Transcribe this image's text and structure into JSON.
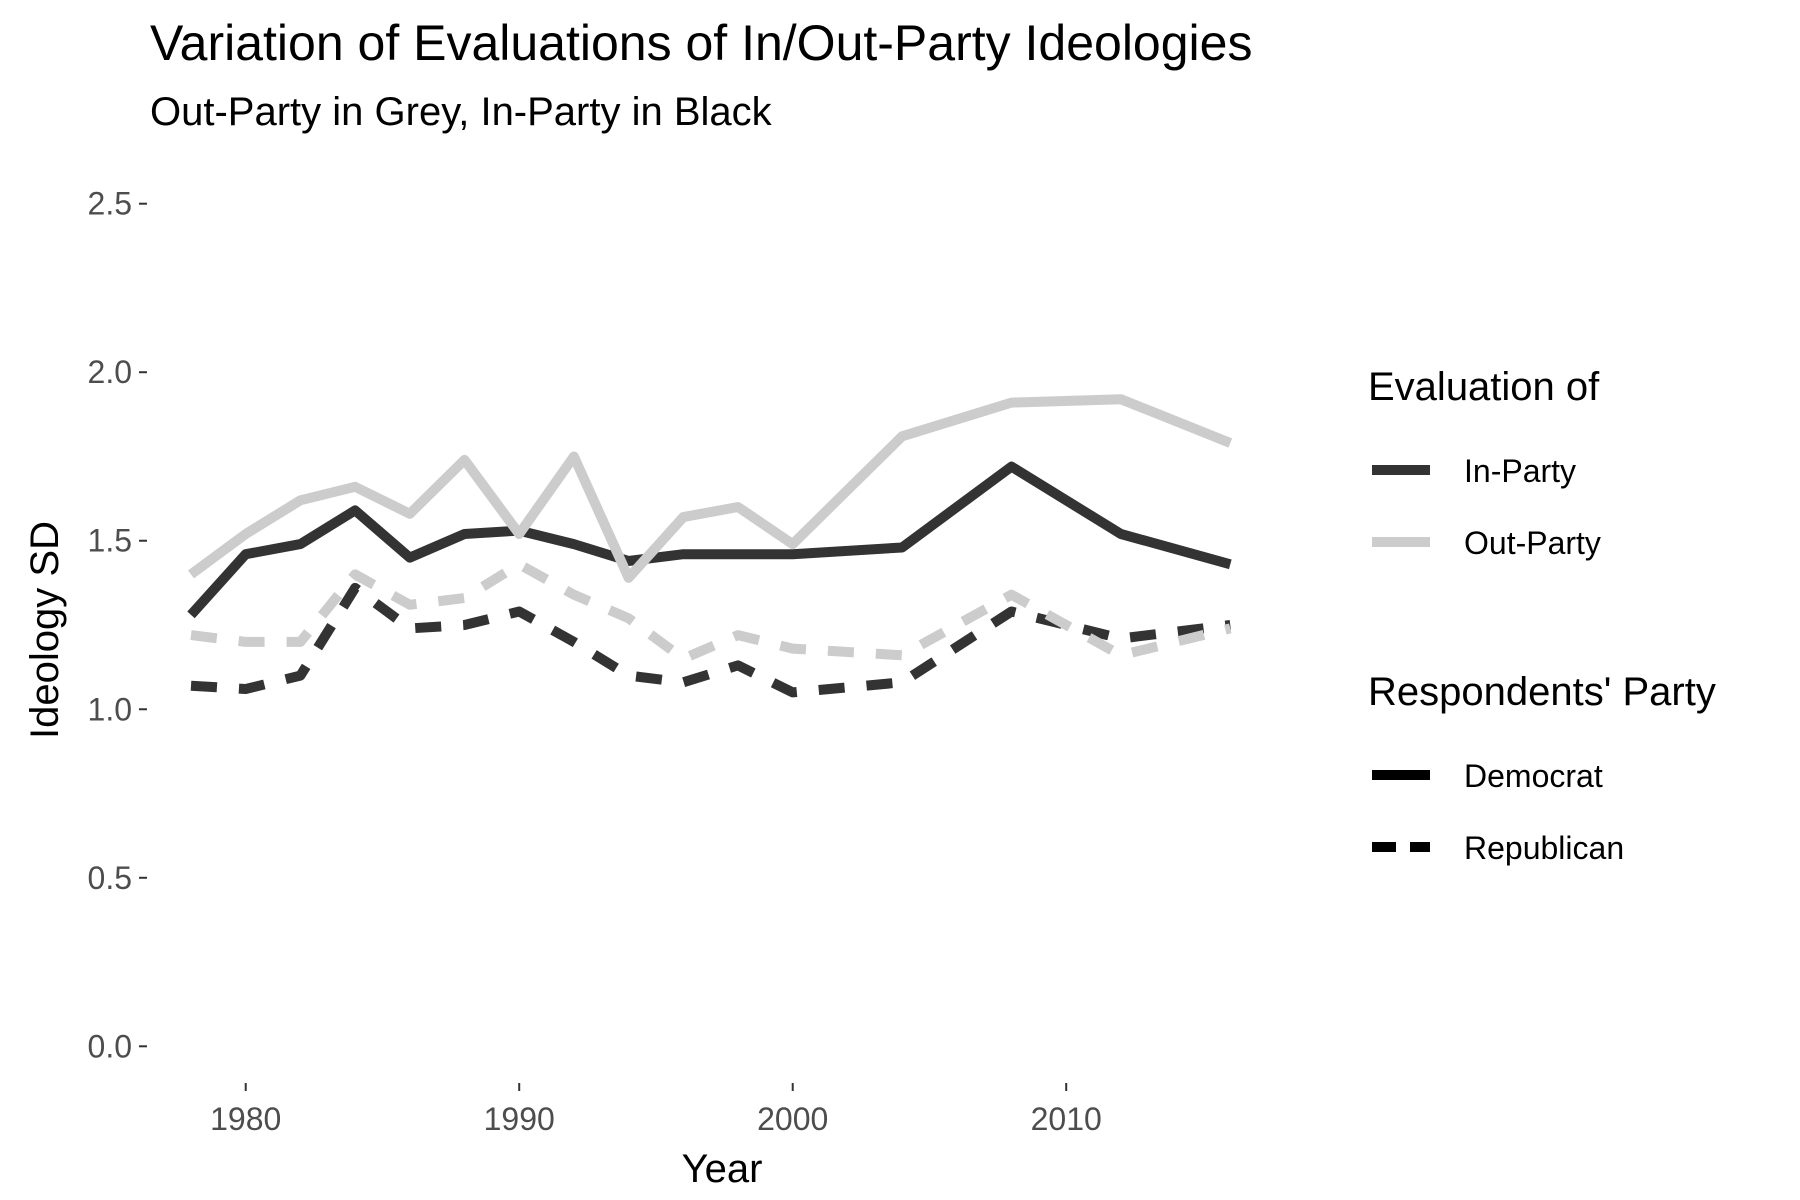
{
  "chart_data": {
    "type": "line",
    "title": "Variation of Evaluations of In/Out-Party Ideologies",
    "subtitle": "Out-Party in Grey, In-Party in Black",
    "xlabel": "Year",
    "ylabel": "Ideology SD",
    "xlim": [
      1976.5,
      2018
    ],
    "ylim": [
      -0.1,
      2.6
    ],
    "x_ticks": [
      1980,
      1990,
      2000,
      2010
    ],
    "y_ticks": [
      0.0,
      0.5,
      1.0,
      1.5,
      2.0,
      2.5
    ],
    "y_tick_labels": [
      "0.0",
      "0.5",
      "1.0",
      "1.5",
      "2.0",
      "2.5"
    ],
    "grid": false,
    "legend_position": "right",
    "colors": {
      "in_party": "#333333",
      "out_party": "#cccccc"
    },
    "legends": [
      {
        "title": "Evaluation of",
        "items": [
          {
            "label": "In-Party",
            "color": "#333333",
            "dash": "solid"
          },
          {
            "label": "Out-Party",
            "color": "#cccccc",
            "dash": "solid"
          }
        ]
      },
      {
        "title": "Respondents' Party",
        "items": [
          {
            "label": "Democrat",
            "color": "#000000",
            "dash": "solid"
          },
          {
            "label": "Republican",
            "color": "#000000",
            "dash": "dashed"
          }
        ]
      }
    ],
    "series": [
      {
        "evaluation": "In-Party",
        "party": "Democrat",
        "color": "#333333",
        "dash": "solid",
        "x": [
          1978,
          1980,
          1982,
          1984,
          1986,
          1988,
          1990,
          1992,
          1994,
          1996,
          1998,
          2000,
          2004,
          2008,
          2012,
          2016
        ],
        "y": [
          1.28,
          1.46,
          1.49,
          1.59,
          1.45,
          1.52,
          1.53,
          1.49,
          1.44,
          1.46,
          1.46,
          1.46,
          1.48,
          1.72,
          1.52,
          1.43
        ]
      },
      {
        "evaluation": "Out-Party",
        "party": "Democrat",
        "color": "#cccccc",
        "dash": "solid",
        "x": [
          1978,
          1980,
          1982,
          1984,
          1986,
          1988,
          1990,
          1992,
          1994,
          1996,
          1998,
          2000,
          2004,
          2008,
          2012,
          2016
        ],
        "y": [
          1.4,
          1.52,
          1.62,
          1.66,
          1.58,
          1.74,
          1.52,
          1.75,
          1.39,
          1.57,
          1.6,
          1.49,
          1.81,
          1.91,
          1.92,
          1.79
        ]
      },
      {
        "evaluation": "In-Party",
        "party": "Republican",
        "color": "#333333",
        "dash": "dashed",
        "x": [
          1978,
          1980,
          1982,
          1984,
          1986,
          1988,
          1990,
          1992,
          1994,
          1996,
          1998,
          2000,
          2004,
          2008,
          2012,
          2016
        ],
        "y": [
          1.07,
          1.06,
          1.1,
          1.36,
          1.24,
          1.25,
          1.29,
          1.2,
          1.1,
          1.08,
          1.13,
          1.05,
          1.08,
          1.29,
          1.21,
          1.25
        ]
      },
      {
        "evaluation": "Out-Party",
        "party": "Republican",
        "color": "#cccccc",
        "dash": "dashed",
        "x": [
          1978,
          1980,
          1982,
          1984,
          1986,
          1988,
          1990,
          1992,
          1994,
          1996,
          1998,
          2000,
          2004,
          2008,
          2012,
          2016
        ],
        "y": [
          1.22,
          1.2,
          1.2,
          1.4,
          1.31,
          1.33,
          1.43,
          1.34,
          1.27,
          1.15,
          1.22,
          1.18,
          1.16,
          1.34,
          1.16,
          1.24
        ]
      }
    ]
  }
}
